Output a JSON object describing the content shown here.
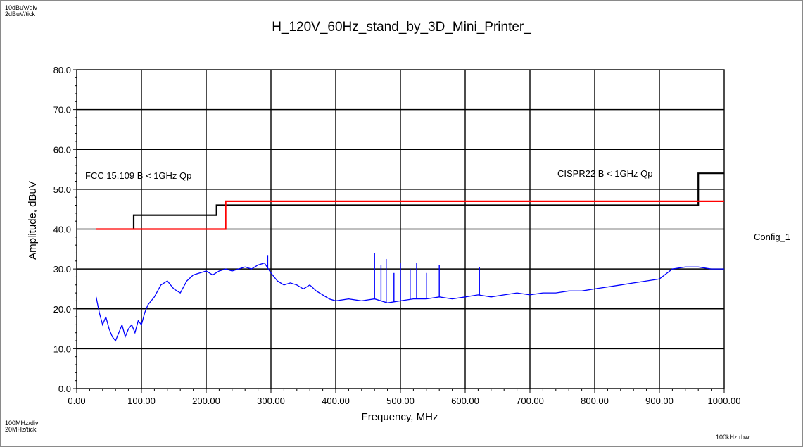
{
  "header": {
    "y_scale_div": "10dBuV/div",
    "y_scale_tick": "2dBuV/tick",
    "x_scale_div": "100MHz/div",
    "x_scale_tick": "20MHz/tick",
    "rbw": "100kHz  rbw",
    "config": "Config_1"
  },
  "colors": {
    "fcc_limit": "#000000",
    "cispr_limit": "#ff0000",
    "measurement": "#0000ff",
    "grid": "#000000"
  },
  "chart_data": {
    "type": "line",
    "title": "H_120V_60Hz_stand_by_3D_Mini_Printer_",
    "xlabel": "Frequency, MHz",
    "ylabel": "Amplitude, dBuV",
    "xlim": [
      0,
      1000
    ],
    "ylim": [
      0,
      80
    ],
    "grid": true,
    "x_ticks": [
      "0.00",
      "100.00",
      "200.00",
      "300.00",
      "400.00",
      "500.00",
      "600.00",
      "700.00",
      "800.00",
      "900.00",
      "1000.00"
    ],
    "y_ticks": [
      "0.0",
      "10.0",
      "20.0",
      "30.0",
      "40.0",
      "50.0",
      "60.0",
      "70.0",
      "80.0"
    ],
    "annotations": [
      "FCC 15.109 B < 1GHz Qp",
      "CISPR22 B < 1GHz Qp"
    ],
    "series": [
      {
        "name": "FCC 15.109 B < 1GHz Qp",
        "color": "#000000",
        "step": true,
        "x": [
          88,
          88,
          216,
          216,
          230,
          230,
          960,
          960,
          1000
        ],
        "y": [
          40,
          43.5,
          43.5,
          46,
          46,
          46,
          46,
          54,
          54
        ]
      },
      {
        "name": "CISPR22 B < 1GHz Qp",
        "color": "#ff0000",
        "step": true,
        "x": [
          30,
          230,
          230,
          1000
        ],
        "y": [
          40,
          40,
          47,
          47
        ]
      },
      {
        "color": "#0000ff",
        "x": [
          30,
          35,
          40,
          45,
          50,
          55,
          60,
          65,
          70,
          75,
          80,
          85,
          90,
          95,
          100,
          105,
          110,
          120,
          130,
          140,
          150,
          160,
          170,
          180,
          190,
          200,
          210,
          220,
          230,
          240,
          250,
          260,
          270,
          280,
          290,
          300,
          310,
          320,
          330,
          340,
          350,
          360,
          370,
          380,
          390,
          400,
          420,
          440,
          460,
          480,
          500,
          520,
          540,
          560,
          580,
          600,
          620,
          640,
          660,
          680,
          700,
          720,
          740,
          760,
          780,
          800,
          820,
          840,
          860,
          880,
          900,
          920,
          940,
          960,
          980,
          1000
        ],
        "y": [
          23,
          19,
          16,
          18,
          15,
          13,
          12,
          14,
          16,
          13,
          15,
          16,
          14,
          17,
          16,
          19,
          21,
          23,
          26,
          27,
          25,
          24,
          27,
          28.5,
          29,
          29.5,
          28.5,
          29.5,
          30,
          29.5,
          30,
          30.5,
          30,
          31,
          31.5,
          29,
          27,
          26,
          26.5,
          26,
          25,
          26,
          24.5,
          23.5,
          22.5,
          22,
          22.5,
          22,
          22.5,
          21.5,
          22,
          22.5,
          22.5,
          23,
          22.5,
          23,
          23.5,
          23,
          23.5,
          24,
          23.5,
          24,
          24,
          24.5,
          24.5,
          25,
          25.5,
          26,
          26.5,
          27,
          27.5,
          30,
          30.5,
          30.5,
          30,
          30
        ]
      }
    ],
    "spikes": [
      {
        "x": 295,
        "y": 33.5
      },
      {
        "x": 460,
        "y": 34
      },
      {
        "x": 470,
        "y": 31
      },
      {
        "x": 478,
        "y": 32.5
      },
      {
        "x": 490,
        "y": 29
      },
      {
        "x": 500,
        "y": 31.5
      },
      {
        "x": 515,
        "y": 30
      },
      {
        "x": 525,
        "y": 31.5
      },
      {
        "x": 540,
        "y": 29
      },
      {
        "x": 560,
        "y": 31
      },
      {
        "x": 622,
        "y": 30.5
      }
    ]
  }
}
